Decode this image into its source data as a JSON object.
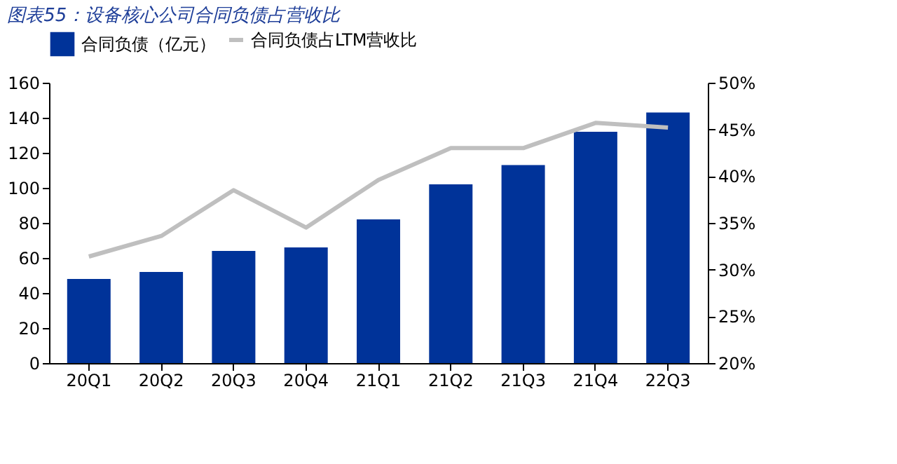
{
  "chart_data": {
    "type": "bar",
    "title": "图表55：设备核心公司合同负债占营收比",
    "categories": [
      "20Q1",
      "20Q2",
      "20Q3",
      "20Q4",
      "21Q1",
      "21Q2",
      "21Q3",
      "21Q4",
      "22Q3"
    ],
    "series": [
      {
        "name": "合同负债（亿元）",
        "color": "#003399",
        "values": [
          48,
          52,
          64,
          66,
          82,
          102,
          113,
          132,
          143
        ]
      },
      {
        "name": "合同负债占LTM营收比",
        "type": "line",
        "axis": "y2",
        "color": "#bfbfbf",
        "values": [
          31.4,
          33.6,
          38.5,
          34.5,
          39.6,
          43.0,
          43.0,
          45.7,
          45.2
        ]
      }
    ],
    "ylim": [
      0,
      160
    ],
    "yticks": [
      0,
      20,
      40,
      60,
      80,
      100,
      120,
      140,
      160
    ],
    "y2lim": [
      20,
      50
    ],
    "y2ticks": [
      {
        "value": 20,
        "label": "20%"
      },
      {
        "value": 25,
        "label": "25%"
      },
      {
        "value": 30,
        "label": "30%"
      },
      {
        "value": 35,
        "label": "35%"
      },
      {
        "value": 40,
        "label": "40%"
      },
      {
        "value": 45,
        "label": "45%"
      },
      {
        "value": 50,
        "label": "50%"
      }
    ],
    "legend": "top",
    "grid": false
  }
}
